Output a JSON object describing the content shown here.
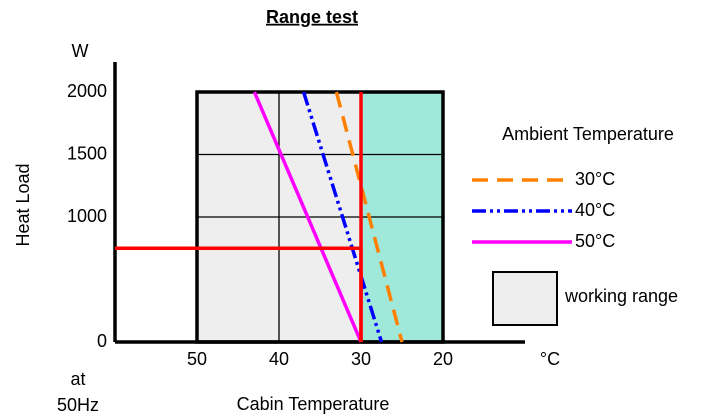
{
  "chart_data": {
    "type": "line",
    "title": "Range test",
    "y_unit": "W",
    "y_label": "Heat Load",
    "x_unit": "°C",
    "x_label": "Cabin Temperature",
    "x_note": [
      "at",
      "50Hz"
    ],
    "xlim": [
      60,
      10
    ],
    "xticks": [
      50,
      40,
      30,
      20
    ],
    "ylim": [
      0,
      2000
    ],
    "yticks": [
      0,
      1000,
      1500,
      2000
    ],
    "grid": true,
    "legend_title": "Ambient Temperature",
    "legend": "right",
    "working_range": {
      "label": "working range",
      "color": "#eeeeee",
      "x": [
        50,
        20
      ],
      "y": [
        0,
        2000
      ]
    },
    "highlight": {
      "color": "#a0e8da",
      "x": [
        30,
        20
      ],
      "y": [
        0,
        2000
      ]
    },
    "series": [
      {
        "name": "30°C",
        "color": "#ff8000",
        "dash": "16,9",
        "x": [
          33,
          25
        ],
        "values": [
          2000,
          0
        ]
      },
      {
        "name": "40°C",
        "color": "#0000ff",
        "dash": "14,4,3,4,3,4",
        "x": [
          37,
          27.5
        ],
        "values": [
          2000,
          0
        ]
      },
      {
        "name": "50°C",
        "color": "#ff00ff",
        "dash": "none",
        "x": [
          43,
          30
        ],
        "values": [
          2000,
          0
        ]
      }
    ],
    "limit_lines": [
      {
        "color": "#ff0000",
        "x": [
          60,
          30,
          30
        ],
        "values": [
          750,
          750,
          0
        ]
      },
      {
        "color": "#ff0000",
        "x": [
          30,
          30
        ],
        "values": [
          0,
          2000
        ]
      }
    ]
  }
}
